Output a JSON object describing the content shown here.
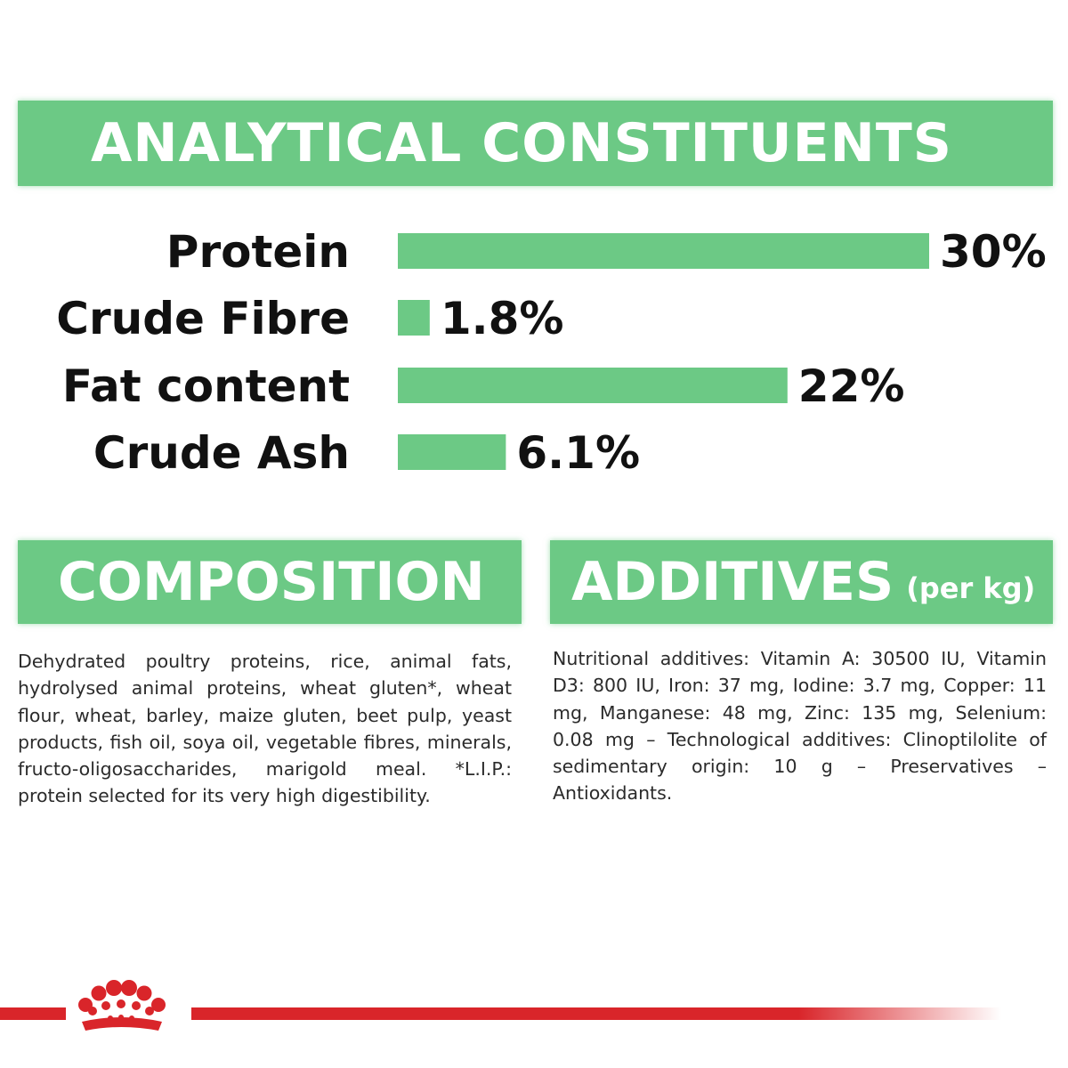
{
  "analytical": {
    "title": "ANALYTICAL CONSTITUENTS"
  },
  "chart_data": {
    "type": "bar",
    "orientation": "horizontal",
    "categories": [
      "Protein",
      "Crude Fibre",
      "Fat content",
      "Crude Ash"
    ],
    "values": [
      30,
      1.8,
      22,
      6.1
    ],
    "value_labels": [
      "30%",
      "1.8%",
      "22%",
      "6.1%"
    ],
    "unit": "%",
    "xlim": [
      0,
      30
    ],
    "title": "ANALYTICAL CONSTITUENTS",
    "xlabel": "",
    "ylabel": "",
    "grid": false,
    "bar_color": "#6cc985"
  },
  "composition": {
    "title": "COMPOSITION",
    "text": "Dehydrated poultry proteins, rice, animal fats, hydrolysed animal proteins, wheat gluten*, wheat flour, wheat, barley, maize gluten, beet pulp, yeast products, fish oil, soya oil, vegetable fibres, minerals, fructo-oligosaccharides, marigold meal. *L.I.P.: protein selected for its very high digestibility."
  },
  "additives": {
    "title": "ADDITIVES",
    "subtitle": "(per kg)",
    "text": "Nutritional additives: Vitamin A: 30500 IU, Vitamin D3: 800 IU, Iron: 37 mg, Iodine: 3.7 mg, Copper: 11 mg, Manganese: 48 mg, Zinc: 135 mg, Selenium: 0.08 mg – Technological additives: Clinoptilolite of sedimentary origin: 10 g – Preservatives – Antioxidants."
  },
  "colors": {
    "accent_green": "#6cc985",
    "brand_red": "#d9252a"
  },
  "footer": {
    "logo_icon": "royal-canin-crown-icon"
  }
}
